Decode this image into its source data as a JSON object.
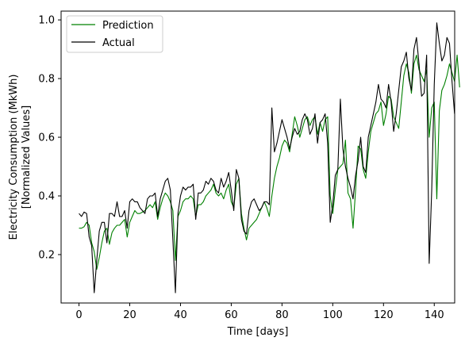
{
  "chart_data": {
    "type": "line",
    "xlabel": "Time [days]",
    "ylabel_lines": [
      "Electricity Consumption (MkWh)",
      "[Normalized Values]"
    ],
    "xlim": [
      -7.05,
      148.05
    ],
    "ylim": [
      0.035,
      1.03
    ],
    "xticks": [
      0,
      20,
      40,
      60,
      80,
      100,
      120,
      140
    ],
    "yticks": [
      0.2,
      0.4,
      0.6,
      0.8,
      1.0
    ],
    "ytick_labels": [
      "0.2",
      "0.4",
      "0.6",
      "0.8",
      "1.0"
    ],
    "legend_position": "upper left",
    "series": [
      {
        "name": "Prediction",
        "color": "#008000",
        "values": [
          0.29,
          0.29,
          0.295,
          0.31,
          0.3,
          0.24,
          0.21,
          0.15,
          0.19,
          0.24,
          0.28,
          0.29,
          0.235,
          0.275,
          0.29,
          0.3,
          0.3,
          0.31,
          0.32,
          0.26,
          0.31,
          0.33,
          0.35,
          0.34,
          0.34,
          0.345,
          0.35,
          0.36,
          0.37,
          0.36,
          0.38,
          0.32,
          0.36,
          0.39,
          0.41,
          0.4,
          0.38,
          0.35,
          0.18,
          0.33,
          0.35,
          0.38,
          0.39,
          0.39,
          0.4,
          0.39,
          0.33,
          0.37,
          0.37,
          0.38,
          0.4,
          0.41,
          0.42,
          0.44,
          0.41,
          0.4,
          0.41,
          0.39,
          0.42,
          0.44,
          0.38,
          0.36,
          0.44,
          0.46,
          0.34,
          0.29,
          0.25,
          0.29,
          0.3,
          0.31,
          0.32,
          0.34,
          0.36,
          0.38,
          0.36,
          0.33,
          0.4,
          0.46,
          0.5,
          0.53,
          0.57,
          0.59,
          0.58,
          0.55,
          0.61,
          0.67,
          0.64,
          0.6,
          0.63,
          0.66,
          0.67,
          0.64,
          0.66,
          0.67,
          0.61,
          0.65,
          0.62,
          0.66,
          0.67,
          0.4,
          0.34,
          0.42,
          0.49,
          0.5,
          0.51,
          0.59,
          0.41,
          0.39,
          0.29,
          0.42,
          0.57,
          0.56,
          0.49,
          0.46,
          0.55,
          0.62,
          0.65,
          0.68,
          0.69,
          0.72,
          0.64,
          0.68,
          0.74,
          0.73,
          0.67,
          0.65,
          0.63,
          0.72,
          0.81,
          0.85,
          0.82,
          0.75,
          0.85,
          0.88,
          0.83,
          0.81,
          0.79,
          0.83,
          0.6,
          0.7,
          0.72,
          0.39,
          0.69,
          0.76,
          0.78,
          0.81,
          0.85,
          0.82,
          0.79,
          0.88,
          0.77
        ]
      },
      {
        "name": "Actual",
        "color": "#000000",
        "values": [
          0.34,
          0.33,
          0.345,
          0.34,
          0.26,
          0.23,
          0.07,
          0.18,
          0.28,
          0.31,
          0.31,
          0.24,
          0.34,
          0.34,
          0.33,
          0.38,
          0.33,
          0.33,
          0.35,
          0.29,
          0.38,
          0.39,
          0.38,
          0.38,
          0.36,
          0.35,
          0.34,
          0.39,
          0.4,
          0.4,
          0.41,
          0.33,
          0.39,
          0.42,
          0.45,
          0.46,
          0.42,
          0.25,
          0.07,
          0.34,
          0.4,
          0.43,
          0.42,
          0.43,
          0.43,
          0.44,
          0.32,
          0.41,
          0.41,
          0.42,
          0.45,
          0.44,
          0.46,
          0.45,
          0.42,
          0.41,
          0.46,
          0.43,
          0.45,
          0.48,
          0.42,
          0.35,
          0.49,
          0.46,
          0.32,
          0.28,
          0.27,
          0.35,
          0.38,
          0.39,
          0.37,
          0.35,
          0.36,
          0.38,
          0.38,
          0.37,
          0.7,
          0.55,
          0.58,
          0.62,
          0.66,
          0.63,
          0.6,
          0.56,
          0.6,
          0.63,
          0.61,
          0.62,
          0.66,
          0.68,
          0.66,
          0.61,
          0.63,
          0.68,
          0.58,
          0.65,
          0.66,
          0.68,
          0.58,
          0.31,
          0.37,
          0.47,
          0.49,
          0.73,
          0.56,
          0.5,
          0.46,
          0.43,
          0.39,
          0.47,
          0.52,
          0.6,
          0.5,
          0.48,
          0.6,
          0.64,
          0.68,
          0.72,
          0.78,
          0.73,
          0.72,
          0.7,
          0.78,
          0.72,
          0.62,
          0.68,
          0.76,
          0.84,
          0.86,
          0.89,
          0.8,
          0.76,
          0.9,
          0.94,
          0.85,
          0.74,
          0.75,
          0.88,
          0.17,
          0.42,
          0.78,
          0.99,
          0.92,
          0.86,
          0.88,
          0.94,
          0.92,
          0.79,
          0.68
        ]
      }
    ]
  }
}
